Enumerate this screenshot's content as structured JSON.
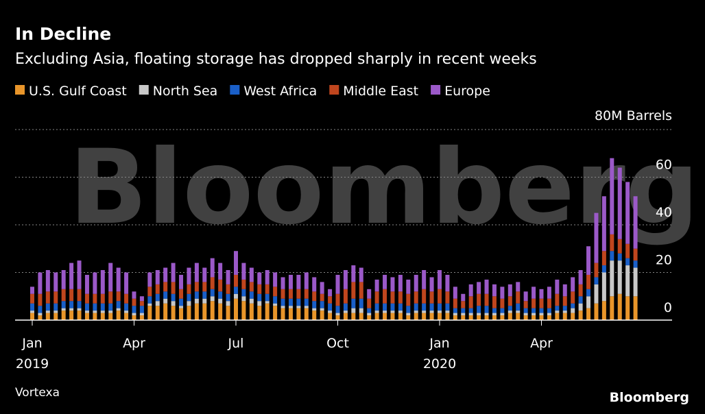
{
  "chart_data": {
    "type": "stacked_bar",
    "title": "In Decline",
    "subtitle": "Excluding Asia, floating storage has dropped sharply in recent weeks",
    "source": "Vortexa",
    "logo": "Bloomberg",
    "watermark": "Bloomberg",
    "ylim": [
      0,
      80
    ],
    "yticks": [
      0,
      20,
      40,
      60,
      {
        "value": 80,
        "label": "80M Barrels"
      }
    ],
    "xticks": [
      {
        "value": 0,
        "label": "Jan",
        "year": "2019"
      },
      {
        "value": 13,
        "label": "Apr"
      },
      {
        "value": 26,
        "label": "Jul"
      },
      {
        "value": 39,
        "label": "Oct"
      },
      {
        "value": 52,
        "label": "Jan",
        "year": "2020"
      },
      {
        "value": 65,
        "label": "Apr"
      }
    ],
    "grid": true,
    "series": [
      {
        "name": "U.S. Gulf Coast",
        "color": "#e8952a",
        "values": [
          3,
          2,
          3,
          3,
          4,
          4,
          4,
          3,
          3,
          3,
          3,
          4,
          3,
          2,
          2,
          6,
          6,
          7,
          6,
          5,
          6,
          7,
          7,
          8,
          7,
          6,
          9,
          8,
          7,
          6,
          7,
          6,
          5,
          5,
          5,
          5,
          4,
          4,
          3,
          2,
          3,
          3,
          3,
          2,
          3,
          3,
          3,
          3,
          2,
          3,
          3,
          3,
          3,
          3,
          2,
          2,
          2,
          2,
          2,
          2,
          2,
          3,
          3,
          2,
          2,
          2,
          2,
          3,
          3,
          3,
          4,
          5,
          7,
          8,
          10,
          11,
          10,
          10
        ]
      },
      {
        "name": "North Sea",
        "color": "#c8c8c8",
        "values": [
          1,
          1,
          1,
          1,
          1,
          1,
          1,
          1,
          1,
          1,
          1,
          1,
          1,
          1,
          1,
          1,
          2,
          2,
          2,
          1,
          2,
          2,
          2,
          2,
          2,
          2,
          2,
          2,
          2,
          2,
          1,
          1,
          1,
          1,
          1,
          1,
          1,
          1,
          1,
          1,
          1,
          2,
          2,
          1,
          1,
          1,
          1,
          1,
          1,
          1,
          1,
          1,
          1,
          1,
          1,
          1,
          1,
          1,
          1,
          1,
          1,
          1,
          1,
          1,
          1,
          1,
          1,
          1,
          1,
          2,
          3,
          5,
          8,
          12,
          15,
          14,
          13,
          12
        ]
      },
      {
        "name": "West Africa",
        "color": "#1a5fc8",
        "values": [
          3,
          3,
          3,
          3,
          3,
          3,
          3,
          3,
          3,
          3,
          3,
          3,
          3,
          3,
          3,
          3,
          3,
          3,
          3,
          3,
          3,
          3,
          3,
          3,
          3,
          3,
          3,
          3,
          3,
          3,
          3,
          3,
          3,
          3,
          3,
          3,
          3,
          3,
          3,
          3,
          3,
          4,
          4,
          2,
          3,
          3,
          3,
          3,
          3,
          3,
          3,
          3,
          3,
          3,
          2,
          2,
          2,
          3,
          3,
          2,
          2,
          2,
          3,
          2,
          2,
          2,
          2,
          2,
          2,
          2,
          3,
          3,
          3,
          3,
          4,
          3,
          3,
          3
        ]
      },
      {
        "name": "Middle East",
        "color": "#c0461e",
        "values": [
          4,
          5,
          5,
          5,
          5,
          5,
          5,
          4,
          4,
          4,
          5,
          4,
          4,
          3,
          2,
          4,
          4,
          4,
          5,
          4,
          4,
          4,
          4,
          5,
          5,
          4,
          5,
          4,
          4,
          4,
          4,
          4,
          4,
          4,
          4,
          4,
          4,
          3,
          3,
          5,
          6,
          7,
          7,
          4,
          5,
          6,
          5,
          5,
          5,
          5,
          6,
          5,
          6,
          5,
          4,
          3,
          5,
          5,
          5,
          5,
          4,
          4,
          5,
          3,
          4,
          4,
          4,
          5,
          4,
          5,
          5,
          6,
          6,
          6,
          7,
          6,
          6,
          5
        ]
      },
      {
        "name": "Europe",
        "color": "#9b59c8",
        "values": [
          3,
          9,
          9,
          8,
          8,
          11,
          12,
          8,
          9,
          10,
          12,
          10,
          9,
          3,
          2,
          6,
          6,
          6,
          8,
          6,
          7,
          8,
          6,
          8,
          7,
          6,
          10,
          7,
          6,
          5,
          6,
          6,
          5,
          6,
          6,
          7,
          6,
          5,
          3,
          8,
          8,
          7,
          6,
          4,
          5,
          6,
          6,
          7,
          6,
          7,
          8,
          6,
          8,
          7,
          5,
          3,
          5,
          5,
          6,
          5,
          5,
          5,
          4,
          4,
          5,
          4,
          5,
          6,
          5,
          6,
          6,
          12,
          21,
          23,
          32,
          30,
          26,
          22
        ]
      }
    ]
  }
}
